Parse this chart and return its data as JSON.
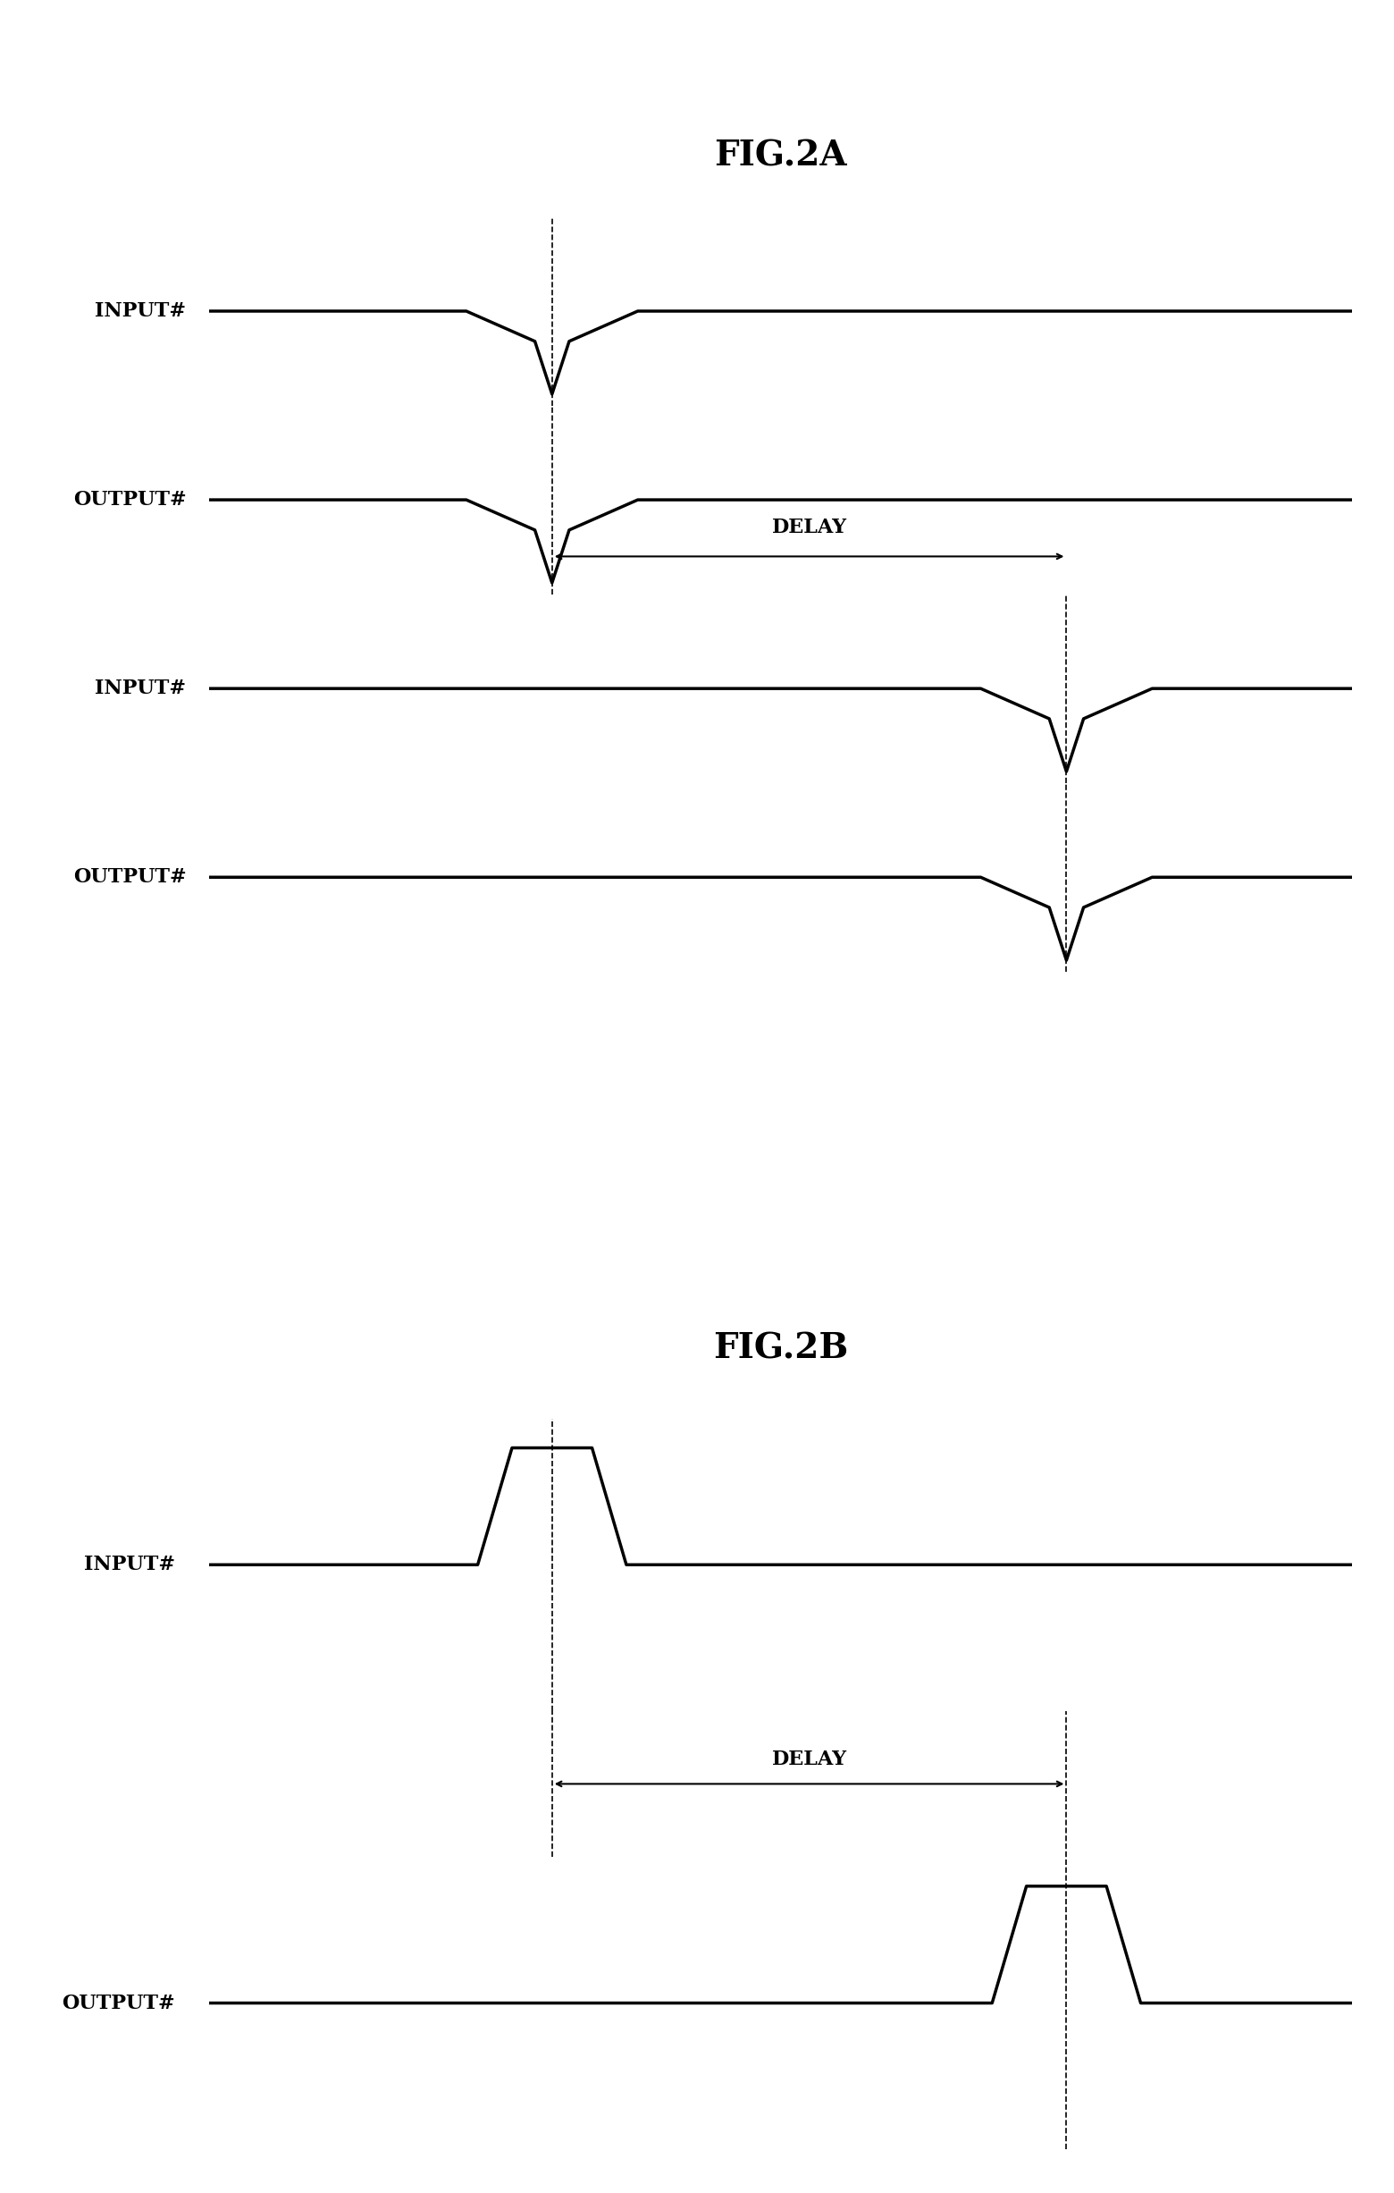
{
  "fig2a_title": "FIG.2A",
  "fig2b_title": "FIG.2B",
  "delay_label": "DELAY",
  "input_label": "INPUT#",
  "output_label": "OUTPUT#",
  "bg_color": "#ffffff",
  "line_color": "#000000",
  "line_width": 2.5,
  "title_fontsize": 28,
  "label_fontsize": 16,
  "delay_fontsize": 16
}
